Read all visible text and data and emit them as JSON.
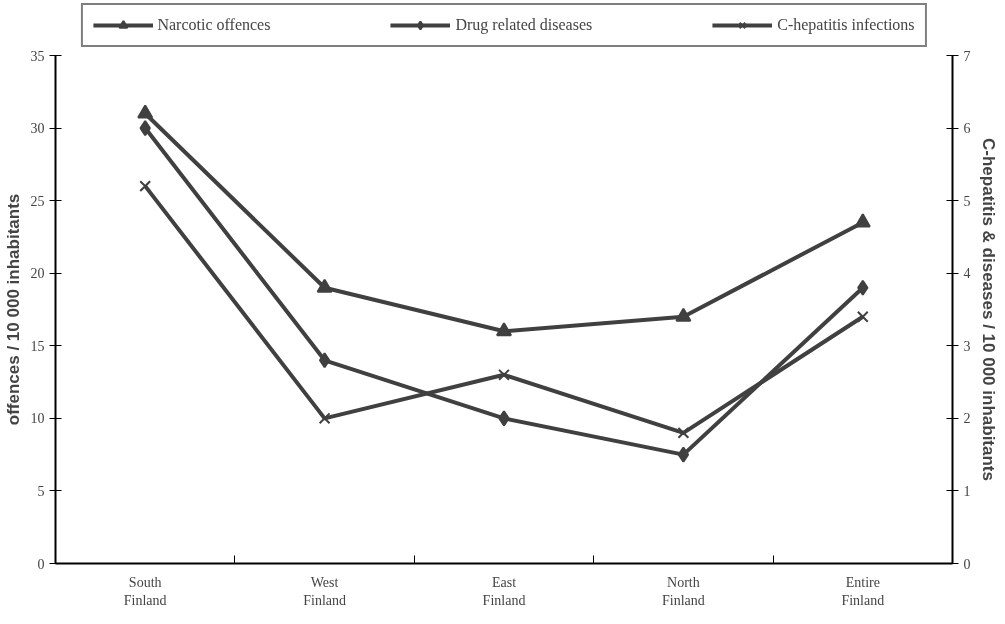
{
  "chart_data": {
    "type": "line",
    "categories": [
      "South Finland",
      "West Finland",
      "East Finland",
      "North Finland",
      "Entire Finland"
    ],
    "ylabel": "offences / 10 000 inhabitants",
    "y2label": "C-hepatitis & diseases / 10 000 inhabitants",
    "ylim": [
      0,
      35
    ],
    "yticks": [
      0,
      5,
      10,
      15,
      20,
      25,
      30,
      35
    ],
    "y2lim": [
      0,
      7
    ],
    "y2ticks": [
      0,
      1,
      2,
      3,
      4,
      5,
      6,
      7
    ],
    "grid": false,
    "legend": "top",
    "series": [
      {
        "name": "Narcotic offences",
        "color": "#404040",
        "marker": "triangle",
        "values": [
          31,
          19,
          16,
          17,
          23.5
        ]
      },
      {
        "name": "Drug related diseases",
        "color": "#404040",
        "marker": "diamond",
        "axis": "y2",
        "values": [
          6.0,
          2.8,
          2.0,
          1.5,
          3.8
        ]
      },
      {
        "name": "C-hepatitis infections",
        "color": "#404040",
        "marker": "cross",
        "axis": "y2",
        "values": [
          5.2,
          2.0,
          2.6,
          1.8,
          3.4
        ]
      }
    ]
  }
}
